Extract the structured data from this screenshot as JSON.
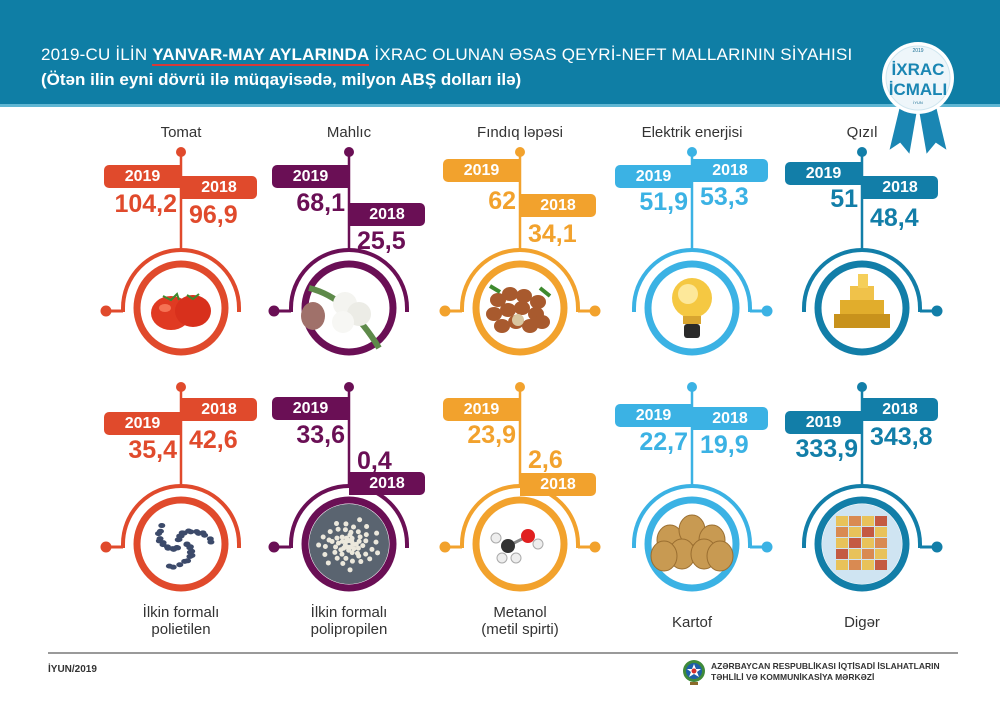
{
  "header": {
    "title_prefix": "2019-CU İLİN ",
    "title_highlight": "YANVAR-MAY AYLARINDA",
    "title_suffix": " İXRAC OLUNAN ƏSAS QEYRİ-NEFT MALLARININ SİYAHISI",
    "subtitle": "(Ötən ilin eyni dövrü ilə müqayisədə, milyon ABŞ dolları ilə)",
    "badge": {
      "year": "2019",
      "line1": "İXRAC",
      "line2": "İCMALI",
      "month": "İYUN"
    }
  },
  "colors": {
    "header_bg": "#0f7ea5",
    "red": "#e04a2c",
    "purple": "#6a0f55",
    "orange": "#f2a22d",
    "light_blue": "#3bb2e4",
    "dark_blue": "#127ea8"
  },
  "items": [
    {
      "name": "Tomat",
      "year_a": "2019",
      "value_a": "104,2",
      "year_b": "2018",
      "value_b": "96,9",
      "picture": "tomato-image"
    },
    {
      "name": "Mahlıc",
      "year_a": "2019",
      "value_a": "68,1",
      "year_b": "2018",
      "value_b": "25,5",
      "picture": "cotton-image"
    },
    {
      "name": "Fındıq ləpəsi",
      "year_a": "2019",
      "value_a": "62",
      "year_b": "2018",
      "value_b": "34,1",
      "picture": "hazelnut-image"
    },
    {
      "name": "Elektrik enerjisi",
      "year_a": "2019",
      "value_a": "51,9",
      "year_b": "2018",
      "value_b": "53,3",
      "picture": "lightbulb-image"
    },
    {
      "name": "Qızıl",
      "year_a": "2019",
      "value_a": "51",
      "year_b": "2018",
      "value_b": "48,4",
      "picture": "gold-image"
    },
    {
      "name_line1": "İlkin formalı",
      "name_line2": "polietilen",
      "year_a": "2019",
      "value_a": "35,4",
      "year_b": "2018",
      "value_b": "42,6",
      "picture": "polyethylene-image"
    },
    {
      "name_line1": "İlkin formalı",
      "name_line2": "polipropilen",
      "year_a": "2019",
      "value_a": "33,6",
      "year_b": "2018",
      "value_b": "0,4",
      "picture": "polypropylene-image"
    },
    {
      "name_line1": "Metanol",
      "name_line2": "(metil spirti)",
      "year_a": "2019",
      "value_a": "23,9",
      "year_b": "2018",
      "value_b": "2,6",
      "picture": "methanol-image"
    },
    {
      "name": "Kartof",
      "year_a": "2019",
      "value_a": "22,7",
      "year_b": "2018",
      "value_b": "19,9",
      "picture": "potato-image"
    },
    {
      "name": "Digər",
      "year_a": "2019",
      "value_a": "333,9",
      "year_b": "2018",
      "value_b": "343,8",
      "picture": "containers-image"
    }
  ],
  "footer": {
    "date": "İYUN/2019",
    "org_line1": "AZƏRBAYCAN RESPUBLİKASI İQTİSADİ İSLAHATLARIN",
    "org_line2": "TƏHLİLİ VƏ KOMMUNİKASİYA MƏRKƏZİ"
  }
}
